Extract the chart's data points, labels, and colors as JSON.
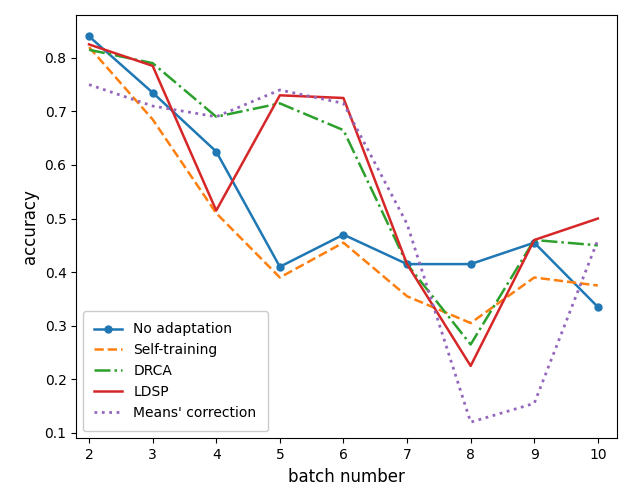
{
  "x": [
    2,
    3,
    4,
    5,
    6,
    7,
    8,
    9,
    10
  ],
  "no_adaptation": [
    0.84,
    0.735,
    0.625,
    0.41,
    0.47,
    0.415,
    0.415,
    0.455,
    0.335
  ],
  "self_training": [
    0.82,
    0.685,
    0.51,
    0.39,
    0.455,
    0.355,
    0.305,
    0.39,
    0.375
  ],
  "drca": [
    0.815,
    0.79,
    0.69,
    0.715,
    0.665,
    0.415,
    0.265,
    0.46,
    0.45
  ],
  "ldsp": [
    0.825,
    0.785,
    0.515,
    0.73,
    0.725,
    0.415,
    0.225,
    0.46,
    0.5
  ],
  "means_correction": [
    0.75,
    0.71,
    0.69,
    0.74,
    0.715,
    0.49,
    0.12,
    0.155,
    0.46
  ],
  "colors": {
    "no_adaptation": "#1f77b4",
    "self_training": "#ff7f0e",
    "drca": "#2ca02c",
    "ldsp": "#d62728",
    "means_correction": "#9467bd"
  },
  "labels": {
    "no_adaptation": "No adaptation",
    "self_training": "Self-training",
    "drca": "DRCA",
    "ldsp": "LDSP",
    "means_correction": "Means' correction"
  },
  "xlabel": "batch number",
  "ylabel": "accuracy",
  "ylim": [
    0.09,
    0.88
  ],
  "xlim": [
    1.8,
    10.3
  ],
  "yticks": [
    0.1,
    0.2,
    0.3,
    0.4,
    0.5,
    0.6,
    0.7,
    0.8
  ],
  "xticks": [
    2,
    3,
    4,
    5,
    6,
    7,
    8,
    9,
    10
  ]
}
